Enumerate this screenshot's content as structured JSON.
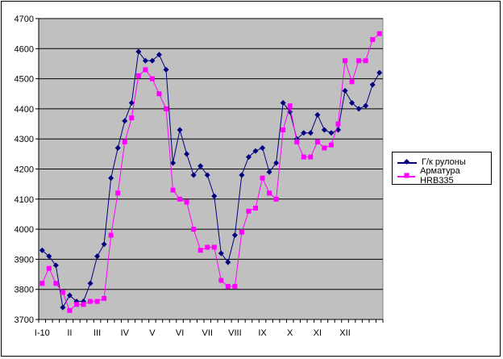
{
  "chart_data": {
    "type": "line",
    "xlabel": "",
    "ylabel": "",
    "ylim": [
      3700,
      4700
    ],
    "yticks": [
      3700,
      3800,
      3900,
      4000,
      4100,
      4200,
      4300,
      4400,
      4500,
      4600,
      4700
    ],
    "grid": "horizontal",
    "legend_placement": "right",
    "x_labels": [
      {
        "label": "I-10",
        "index": 0
      },
      {
        "label": "II",
        "index": 4
      },
      {
        "label": "III",
        "index": 8
      },
      {
        "label": "IV",
        "index": 12
      },
      {
        "label": "V",
        "index": 16
      },
      {
        "label": "VI",
        "index": 20
      },
      {
        "label": "VII",
        "index": 24
      },
      {
        "label": "VIII",
        "index": 28
      },
      {
        "label": "IX",
        "index": 32
      },
      {
        "label": "X",
        "index": 36
      },
      {
        "label": "XI",
        "index": 40
      },
      {
        "label": "XII",
        "index": 44
      }
    ],
    "series": [
      {
        "name": "Г/к рулоны",
        "color": "#000080",
        "marker": "diamond",
        "values": [
          3930,
          3910,
          3880,
          3740,
          3780,
          3760,
          3760,
          3820,
          3910,
          3950,
          4170,
          4270,
          4360,
          4420,
          4590,
          4560,
          4560,
          4580,
          4530,
          4220,
          4330,
          4250,
          4180,
          4210,
          4180,
          4110,
          3920,
          3890,
          3980,
          4180,
          4240,
          4260,
          4270,
          4190,
          4220,
          4420,
          4390,
          4300,
          4320,
          4320,
          4380,
          4330,
          4320,
          4330,
          4460,
          4420,
          4400,
          4410,
          4480,
          4520
        ]
      },
      {
        "name": "Арматура HRB335",
        "color": "#FF00FF",
        "marker": "square",
        "values": [
          3820,
          3870,
          3820,
          3790,
          3730,
          3750,
          3750,
          3760,
          3760,
          3770,
          3980,
          4120,
          4290,
          4370,
          4510,
          4530,
          4500,
          4450,
          4400,
          4130,
          4100,
          4090,
          4000,
          3930,
          3940,
          3940,
          3830,
          3810,
          3810,
          3990,
          4060,
          4070,
          4170,
          4120,
          4100,
          4330,
          4410,
          4290,
          4240,
          4240,
          4290,
          4270,
          4280,
          4350,
          4560,
          4490,
          4560,
          4560,
          4630,
          4650
        ]
      }
    ]
  }
}
